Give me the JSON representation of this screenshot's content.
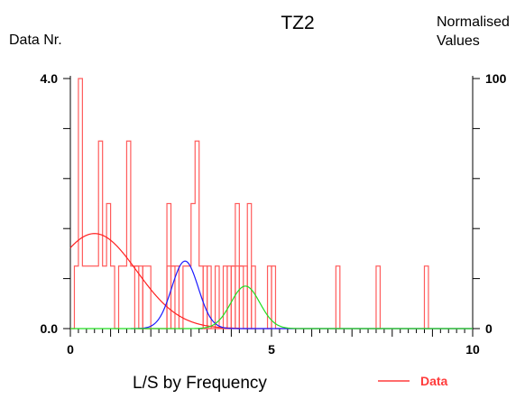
{
  "chart_data": {
    "type": "line",
    "title": "TZ2",
    "xlabel": "L/S by Frequency",
    "ylabel_left": "Data Nr.",
    "ylabel_right": [
      "Normalised",
      "Values"
    ],
    "xlim": [
      0,
      10
    ],
    "ylim_left": [
      0,
      4
    ],
    "ylim_right": [
      0,
      100
    ],
    "x_ticks_labeled": [
      {
        "value": 0,
        "label": "0"
      },
      {
        "value": 5,
        "label": "5"
      },
      {
        "value": 10,
        "label": "10"
      }
    ],
    "y_left_ticks_labeled": [
      {
        "value": 0,
        "label": "0.0"
      },
      {
        "value": 4,
        "label": "4.0"
      }
    ],
    "y_right_ticks_labeled": [
      {
        "value": 0,
        "label": "0"
      },
      {
        "value": 100,
        "label": "100"
      }
    ],
    "legend": {
      "position": "bottom-right",
      "label": "Data",
      "color": "#ff3b3b"
    },
    "data_bars": {
      "name": "Data",
      "color": "#ff5c5c",
      "bin_width": 0.1,
      "heights": [
        0,
        1,
        4,
        1,
        1,
        1,
        1,
        3,
        1,
        2,
        1,
        0,
        1,
        1,
        3,
        1,
        1,
        0,
        0,
        0,
        0,
        0,
        0,
        0,
        1,
        1,
        1,
        0,
        1,
        1,
        2,
        3,
        1,
        0,
        0,
        0,
        0,
        0,
        0,
        0,
        1,
        1,
        1,
        0,
        0,
        0,
        0,
        0,
        0,
        0,
        1,
        0,
        0,
        0,
        0,
        0,
        0,
        0,
        0,
        0,
        0,
        0,
        0,
        0,
        0,
        0,
        0,
        0,
        0,
        0,
        0,
        0,
        0,
        0,
        0,
        0,
        0,
        0,
        0,
        0,
        0,
        0,
        0,
        0,
        0,
        0,
        0,
        0,
        0,
        0,
        0,
        0,
        0,
        0,
        0,
        0,
        0,
        0,
        0,
        0
      ],
      "spikes": [
        {
          "x0": 1.6,
          "x1": 1.8,
          "h": 1
        },
        {
          "x0": 1.8,
          "x1": 2.0,
          "h": 1
        },
        {
          "x0": 2.4,
          "x1": 2.5,
          "h": 2
        },
        {
          "x0": 2.5,
          "x1": 2.6,
          "h": 1
        },
        {
          "x0": 3.3,
          "x1": 3.4,
          "h": 1
        },
        {
          "x0": 3.4,
          "x1": 3.5,
          "h": 1
        },
        {
          "x0": 3.6,
          "x1": 3.7,
          "h": 1
        },
        {
          "x0": 3.8,
          "x1": 3.9,
          "h": 1
        },
        {
          "x0": 3.9,
          "x1": 4.0,
          "h": 1
        },
        {
          "x0": 4.0,
          "x1": 4.1,
          "h": 1
        },
        {
          "x0": 4.1,
          "x1": 4.2,
          "h": 2
        },
        {
          "x0": 4.2,
          "x1": 4.4,
          "h": 1
        },
        {
          "x0": 4.4,
          "x1": 4.5,
          "h": 2
        },
        {
          "x0": 4.5,
          "x1": 4.6,
          "h": 1
        },
        {
          "x0": 4.9,
          "x1": 5.0,
          "h": 1
        },
        {
          "x0": 6.6,
          "x1": 6.7,
          "h": 1
        },
        {
          "x0": 7.6,
          "x1": 7.7,
          "h": 1
        },
        {
          "x0": 8.8,
          "x1": 8.9,
          "h": 1
        }
      ]
    },
    "series": [
      {
        "color": "#ff2020",
        "peak_x": 0.6,
        "peak_y_norm": 38,
        "sigma": 1.05,
        "x_range": [
          0,
          4.2
        ]
      },
      {
        "color": "#1a1aff",
        "peak_x": 2.85,
        "peak_y_norm": 27,
        "sigma": 0.33,
        "x_range": [
          1.5,
          10
        ]
      },
      {
        "color": "#22dd22",
        "peak_x": 4.35,
        "peak_y_norm": 17,
        "sigma": 0.36,
        "x_range": [
          0,
          10
        ]
      }
    ],
    "grid": false
  }
}
